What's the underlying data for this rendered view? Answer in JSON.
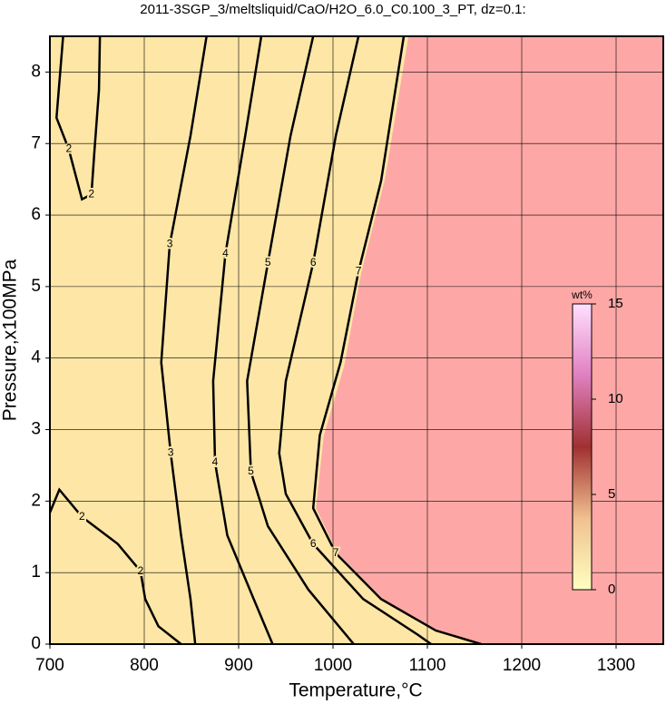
{
  "chart_data": {
    "type": "contour",
    "title": "2011-3SGP_3/meltsliquid/CaO/H2O_6.0_C0.100_3_PT, dz=0.1:",
    "x_label": "Temperature,°C",
    "y_label": "Pressure,x100MPa",
    "xlim": [
      700,
      1350
    ],
    "ylim": [
      0,
      8.5
    ],
    "xticks": [
      700,
      800,
      900,
      1000,
      1100,
      1200,
      1300
    ],
    "yticks": [
      0,
      1,
      2,
      3,
      4,
      5,
      6,
      7,
      8
    ],
    "grid": true,
    "background_color": "#fda8a6",
    "regions": [
      {
        "color": "#fde6a6",
        "x": [
          700,
          1080,
          1055,
          1030,
          1012,
          990,
          982,
          1005,
          1053,
          1110,
          1160,
          700
        ],
        "y": [
          8.5,
          8.5,
          6.5,
          5.2,
          3.9,
          2.9,
          1.9,
          1.27,
          0.63,
          0.19,
          0,
          0
        ]
      }
    ],
    "contours": [
      {
        "level": 2,
        "x": [
          714,
          707,
          720,
          734,
          744,
          747,
          752,
          753
        ],
        "y": [
          8.5,
          7.36,
          6.92,
          6.22,
          6.29,
          6.86,
          7.75,
          8.5
        ]
      },
      {
        "level": 2,
        "x": [
          700,
          710,
          734,
          772,
          796,
          801,
          815,
          839
        ],
        "y": [
          1.84,
          2.16,
          1.78,
          1.4,
          1.02,
          0.63,
          0.25,
          0
        ]
      },
      {
        "level": 3,
        "x": [
          866,
          849,
          827,
          818,
          828,
          839,
          849,
          854
        ],
        "y": [
          8.5,
          7.11,
          5.59,
          3.94,
          2.67,
          1.52,
          0.63,
          0
        ]
      },
      {
        "level": 4,
        "x": [
          924,
          907,
          886,
          873,
          875,
          888,
          916,
          936
        ],
        "y": [
          8.5,
          7.11,
          5.46,
          3.68,
          2.54,
          1.52,
          0.63,
          0
        ]
      },
      {
        "level": 5,
        "x": [
          979,
          955,
          931,
          909,
          913,
          931,
          974,
          1022
        ],
        "y": [
          8.5,
          7.11,
          5.33,
          3.68,
          2.41,
          1.65,
          0.76,
          0
        ]
      },
      {
        "level": 6,
        "x": [
          1027,
          1003,
          979,
          950,
          943,
          950,
          979,
          1032,
          1090,
          1104
        ],
        "y": [
          8.5,
          7.11,
          5.33,
          3.68,
          2.67,
          2.1,
          1.4,
          0.63,
          0.13,
          0
        ]
      },
      {
        "level": 7,
        "x": [
          1075,
          1051,
          1027,
          1008,
          986,
          979,
          1003,
          1051,
          1109,
          1157
        ],
        "y": [
          8.5,
          6.48,
          5.21,
          3.94,
          2.92,
          1.9,
          1.27,
          0.63,
          0.19,
          0
        ]
      }
    ],
    "colorbar": {
      "label": "wt%",
      "lim": [
        0,
        15
      ],
      "ticks": [
        0,
        5,
        10,
        15
      ],
      "colors": [
        "#ffffc0",
        "#f0c090",
        "#a03030",
        "#e080c0",
        "#ffe0ff"
      ]
    }
  }
}
